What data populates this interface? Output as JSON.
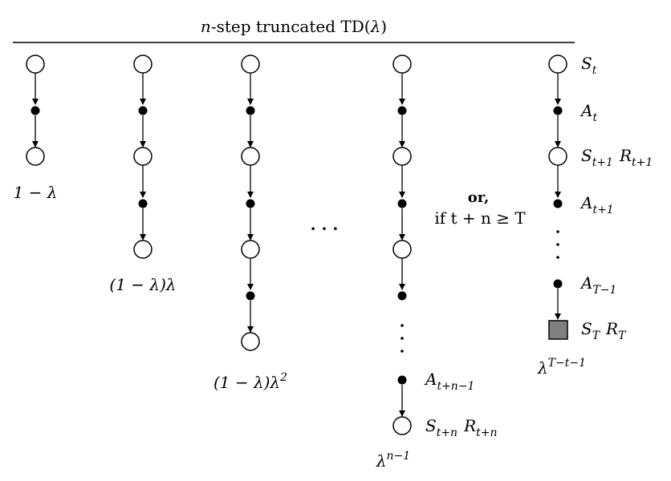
{
  "title": {
    "prefix": "n",
    "main": "-step truncated TD(",
    "lambda": "λ",
    "suffix": ")"
  },
  "weights": {
    "w1": "1 − λ",
    "w2": "(1 − λ)λ",
    "w3_base": "(1 − λ)λ",
    "w3_exp": "2",
    "wn_base": "λ",
    "wn_exp": "n−1",
    "wT_base": "λ",
    "wT_exp": "T−t−1"
  },
  "ellipsis": "· · ·",
  "condition": {
    "or": "or,",
    "if_text": "if t + n ≥  T"
  },
  "labels": {
    "s_t": {
      "base": "S",
      "sub": "t"
    },
    "a_t": {
      "base": "A",
      "sub": "t"
    },
    "s_t1": {
      "base": "S",
      "sub": "t+1"
    },
    "r_t1": {
      "base": "R",
      "sub": "t+1"
    },
    "a_t1": {
      "base": "A",
      "sub": "t+1"
    },
    "a_T1": {
      "base": "A",
      "sub": "T−1"
    },
    "s_T": {
      "base": "S",
      "sub": "T"
    },
    "r_T": {
      "base": "R",
      "sub": "T"
    },
    "a_tn1": {
      "base": "A",
      "sub": "t+n−1"
    },
    "s_tn": {
      "base": "S",
      "sub": "t+n"
    },
    "r_tn": {
      "base": "R",
      "sub": "t+n"
    }
  }
}
